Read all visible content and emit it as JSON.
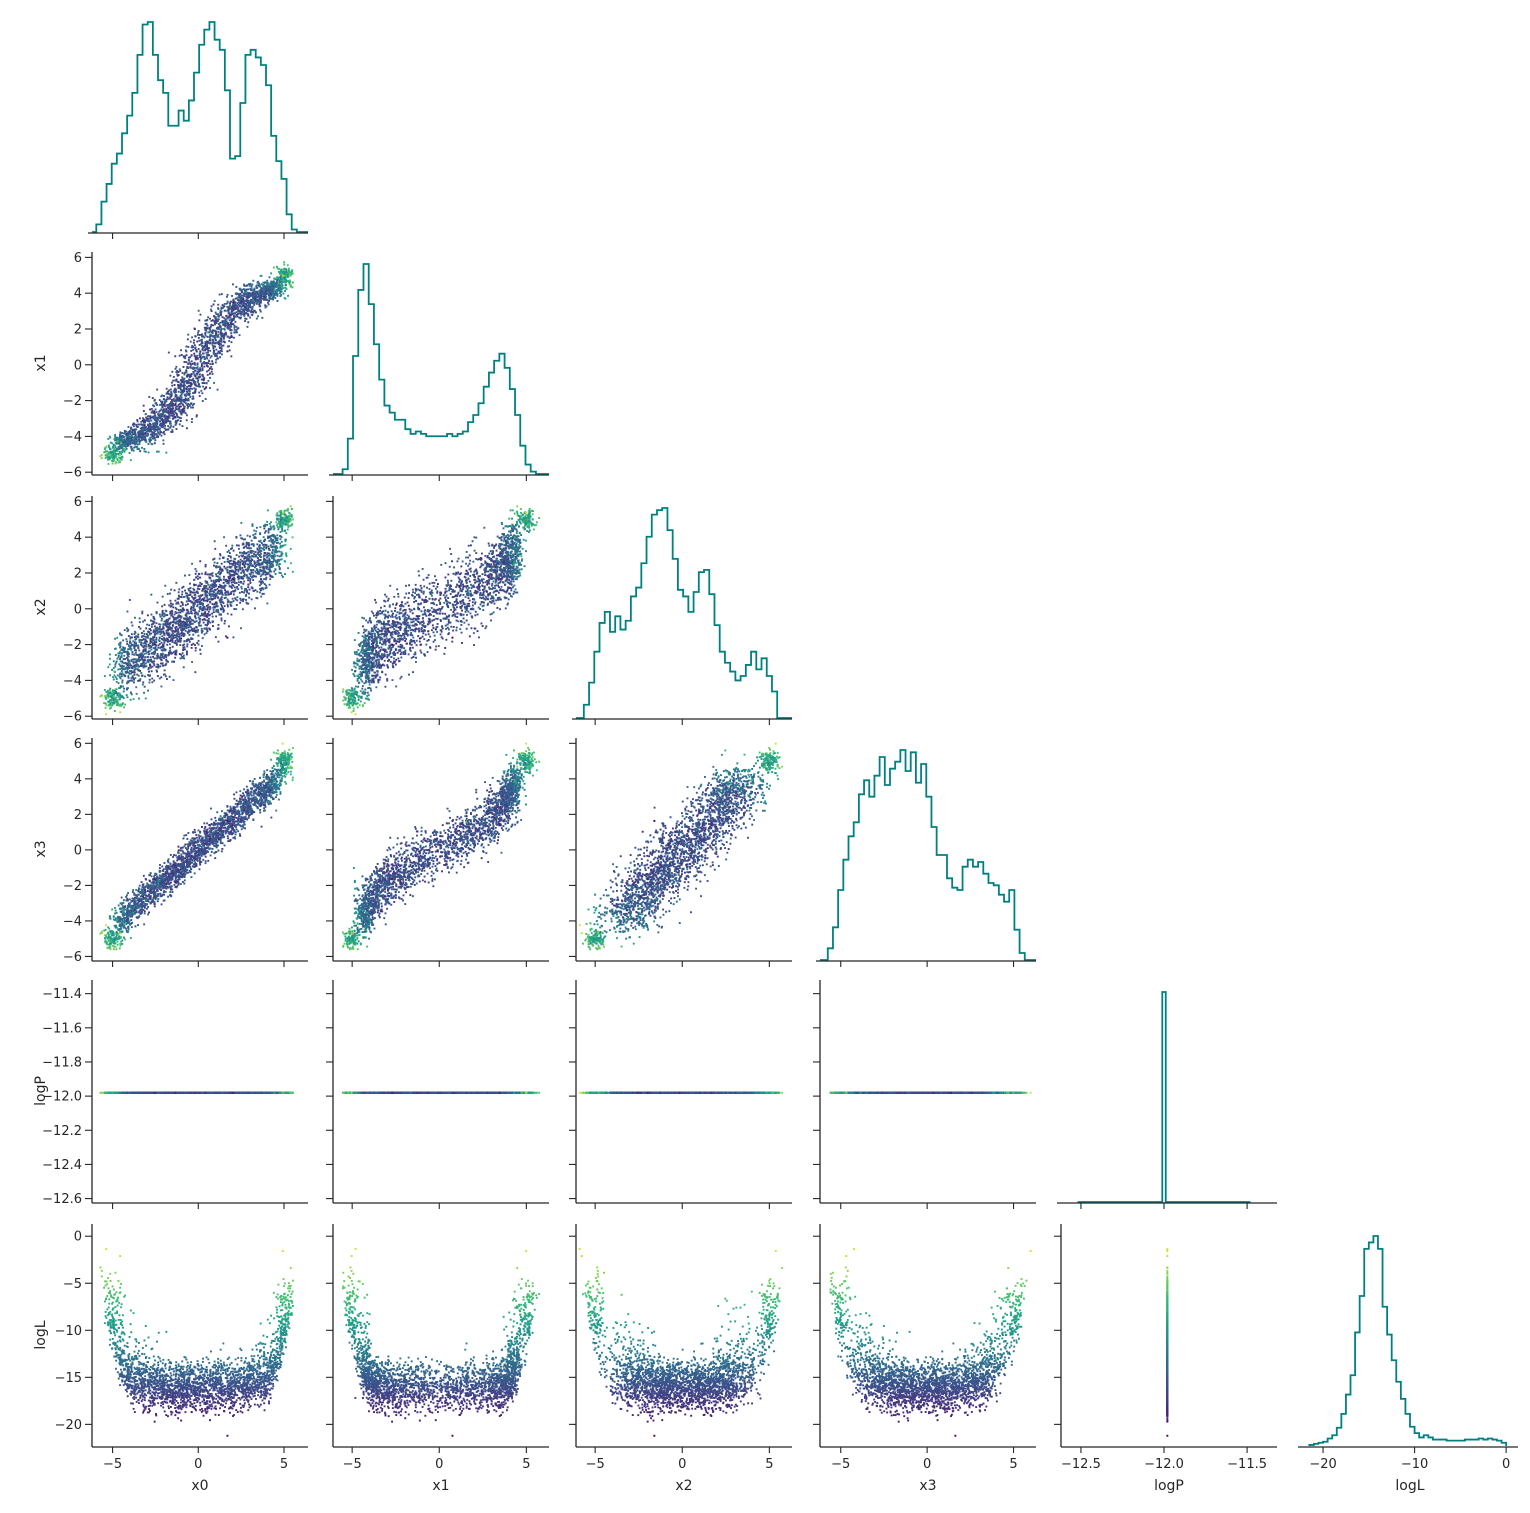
{
  "chart_data": {
    "type": "corner",
    "parameters": [
      "x0",
      "x1",
      "x2",
      "x3",
      "logP",
      "logL"
    ],
    "axis_labels": {
      "x0": "x0",
      "x1": "x1",
      "x2": "x2",
      "x3": "x3",
      "logP": "logP",
      "logL": "logL"
    },
    "ranges": {
      "x0": [
        -6.2,
        6.4
      ],
      "x1": [
        -6.1,
        6.3
      ],
      "x2": [
        -6.1,
        6.3
      ],
      "x3": [
        -6.2,
        6.3
      ],
      "logP": [
        -12.62,
        -11.32
      ],
      "logL": [
        -22.3,
        1.3
      ]
    },
    "ticks": {
      "x0": [
        -5,
        0,
        5
      ],
      "x1": [
        -6,
        -4,
        -2,
        0,
        2,
        4,
        6
      ],
      "x1_bottom": [
        -5,
        0,
        5
      ],
      "x2": [
        -6,
        -4,
        -2,
        0,
        2,
        4,
        6
      ],
      "x2_bottom": [
        -5,
        0,
        5
      ],
      "x3": [
        -6,
        -4,
        -2,
        0,
        2,
        4,
        6
      ],
      "x3_bottom": [
        -5,
        0,
        5
      ],
      "logP": [
        -12.6,
        -12.4,
        -12.2,
        -12.0,
        -11.8,
        -11.6,
        -11.4
      ],
      "logP_bottom": [
        -12.5,
        -12.0,
        -11.5
      ],
      "logL": [
        -20,
        -15,
        -10,
        -5,
        0
      ],
      "logL_bottom": [
        -20,
        -10,
        0
      ]
    },
    "tick_labels": {
      "x0": [
        "−5",
        "0",
        "5"
      ],
      "x1": [
        "−6",
        "−4",
        "−2",
        "0",
        "2",
        "4",
        "6"
      ],
      "x1_bottom": [
        "−5",
        "0",
        "5"
      ],
      "x2": [
        "−6",
        "−4",
        "−2",
        "0",
        "2",
        "4",
        "6"
      ],
      "x2_bottom": [
        "−5",
        "0",
        "5"
      ],
      "x3": [
        "−6",
        "−4",
        "−2",
        "0",
        "2",
        "4",
        "6"
      ],
      "x3_bottom": [
        "−5",
        "0",
        "5"
      ],
      "logP": [
        "−12.6",
        "−12.4",
        "−12.2",
        "−12.0",
        "−11.8",
        "−11.6",
        "−11.4"
      ],
      "logP_bottom": [
        "−12.5",
        "−12.0",
        "−11.5"
      ],
      "logL": [
        "−20",
        "−15",
        "−10",
        "−5",
        "0"
      ],
      "logL_bottom": [
        "−20",
        "−10",
        "0"
      ]
    },
    "histograms": {
      "style": "step",
      "color": "#008080",
      "x0": {
        "x": [
          -5.8,
          -5.5,
          -5.2,
          -4.9,
          -4.6,
          -4.3,
          -4.0,
          -3.7,
          -3.4,
          -3.1,
          -2.8,
          -2.5,
          -2.2,
          -1.9,
          -1.6,
          -1.3,
          -1.0,
          -0.7,
          -0.4,
          -0.1,
          0.2,
          0.5,
          0.8,
          1.1,
          1.4,
          1.7,
          2.0,
          2.3,
          2.6,
          2.9,
          3.2,
          3.5,
          3.8,
          4.1,
          4.4,
          4.7,
          5.0,
          5.3,
          5.6
        ],
        "y": [
          3,
          12,
          19,
          27,
          31,
          39,
          46,
          55,
          70,
          82,
          83,
          70,
          60,
          55,
          42,
          42,
          48,
          44,
          52,
          63,
          74,
          80,
          83,
          76,
          72,
          56,
          29,
          30,
          51,
          70,
          72,
          69,
          66,
          58,
          38,
          28,
          21,
          7,
          1
        ]
      },
      "x1": {
        "x": [
          -5.4,
          -5.1,
          -4.8,
          -4.5,
          -4.2,
          -3.9,
          -3.6,
          -3.3,
          -3.0,
          -2.7,
          -2.4,
          -2.1,
          -1.8,
          -1.5,
          -1.2,
          -0.9,
          -0.6,
          -0.3,
          0.0,
          0.3,
          0.6,
          0.9,
          1.2,
          1.5,
          1.8,
          2.1,
          2.4,
          2.7,
          3.0,
          3.3,
          3.6,
          3.9,
          4.2,
          4.5,
          4.8,
          5.1,
          5.4
        ],
        "y": [
          2,
          15,
          50,
          78,
          89,
          72,
          55,
          40,
          29,
          26,
          23,
          23,
          19,
          17,
          18,
          17,
          16,
          16,
          16,
          16,
          17,
          16,
          17,
          18,
          22,
          25,
          30,
          37,
          43,
          48,
          51,
          45,
          36,
          25,
          12,
          4,
          1
        ]
      },
      "x2": {
        "x": [
          -5.5,
          -5.2,
          -4.9,
          -4.6,
          -4.3,
          -4.0,
          -3.7,
          -3.4,
          -3.1,
          -2.8,
          -2.5,
          -2.2,
          -1.9,
          -1.6,
          -1.3,
          -1.0,
          -0.7,
          -0.4,
          -0.1,
          0.2,
          0.5,
          0.8,
          1.1,
          1.4,
          1.7,
          2.0,
          2.3,
          2.6,
          2.9,
          3.2,
          3.5,
          3.8,
          4.1,
          4.4,
          4.7,
          5.0,
          5.3
        ],
        "y": [
          6,
          16,
          30,
          43,
          48,
          39,
          46,
          40,
          44,
          55,
          59,
          70,
          82,
          92,
          94,
          95,
          85,
          72,
          58,
          55,
          48,
          57,
          66,
          67,
          56,
          42,
          30,
          25,
          21,
          17,
          19,
          24,
          30,
          22,
          27,
          19,
          12
        ]
      },
      "x3": {
        "x": [
          -5.6,
          -5.3,
          -5.0,
          -4.7,
          -4.4,
          -4.1,
          -3.8,
          -3.5,
          -3.2,
          -2.9,
          -2.6,
          -2.3,
          -2.0,
          -1.7,
          -1.4,
          -1.1,
          -0.8,
          -0.5,
          -0.2,
          0.1,
          0.4,
          0.7,
          1.0,
          1.3,
          1.6,
          1.9,
          2.2,
          2.5,
          2.8,
          3.1,
          3.4,
          3.7,
          4.0,
          4.3,
          4.6,
          4.9,
          5.2,
          5.5
        ],
        "y": [
          5,
          14,
          30,
          43,
          53,
          59,
          71,
          77,
          70,
          79,
          87,
          75,
          82,
          85,
          90,
          81,
          89,
          76,
          84,
          70,
          57,
          45,
          45,
          35,
          31,
          30,
          40,
          43,
          40,
          42,
          37,
          33,
          32,
          28,
          25,
          30,
          13,
          3
        ]
      },
      "logP": {
        "x": [
          -12.0
        ],
        "y": [
          100
        ],
        "range": [
          -12.52,
          -11.48
        ]
      },
      "logL": {
        "x": [
          -21.25,
          -20.75,
          -20.25,
          -19.75,
          -19.25,
          -18.75,
          -18.25,
          -17.75,
          -17.25,
          -16.75,
          -16.25,
          -15.75,
          -15.25,
          -14.75,
          -14.25,
          -13.75,
          -13.25,
          -12.75,
          -12.25,
          -11.75,
          -11.25,
          -10.75,
          -10.25,
          -9.75,
          -9.25,
          -8.75,
          -8.25,
          -7.75,
          -7.25,
          -6.75,
          -6.25,
          -5.75,
          -5.25,
          -4.75,
          -4.25,
          -3.75,
          -3.25,
          -2.75,
          -2.25,
          -1.75,
          -1.25,
          -0.75,
          -0.25
        ],
        "y": [
          0.5,
          1,
          1.5,
          2,
          3.5,
          5,
          8.5,
          15,
          24,
          33,
          53,
          70,
          92,
          95,
          98,
          92,
          65,
          52,
          40,
          30,
          22,
          15,
          9,
          6,
          4,
          5,
          4,
          3,
          3,
          3,
          2.5,
          2.5,
          2.5,
          2.5,
          3,
          3,
          3,
          3.5,
          3,
          3.5,
          3,
          2.5,
          1.5
        ],
        "range": [
          -21.5,
          0.0
        ]
      }
    },
    "scatter": {
      "colormap": "viridis",
      "color_by": "logL",
      "color_range": [
        -21,
        0
      ],
      "marker_size": 2
    }
  }
}
